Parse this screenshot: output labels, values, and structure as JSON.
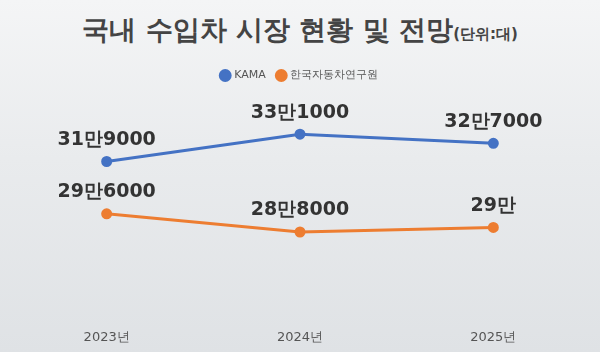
{
  "chart_data": {
    "type": "line",
    "title": "국내 수입차 시장 현황 및 전망",
    "subtitle": "(단위:대)",
    "categories": [
      "2023년",
      "2024년",
      "2025년"
    ],
    "series": [
      {
        "name": "KAMA",
        "color": "#4472c4",
        "marker": "circle",
        "values": [
          319000,
          331000,
          327000
        ],
        "value_labels": [
          "31만9000",
          "33만1000",
          "32만7000"
        ]
      },
      {
        "name": "한국자동차연구원",
        "color": "#ed7d31",
        "marker": "circle",
        "values": [
          296000,
          288000,
          290000
        ],
        "value_labels": [
          "29만6000",
          "28만8000",
          "29만"
        ]
      }
    ],
    "ylim": [
      250000,
      350000
    ],
    "grid": false,
    "legend": "top",
    "data_labels": true,
    "tick_labels": "x"
  }
}
